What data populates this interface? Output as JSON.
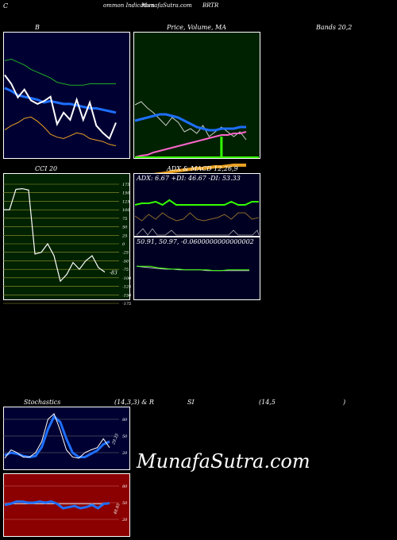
{
  "header": {
    "left": "C",
    "center": "ommon  Indicators",
    "site": "MunafaSutra.com",
    "symbol": "BRTR"
  },
  "panels": {
    "bollinger": {
      "label": "B",
      "title_right": "Bands 20,2"
    },
    "price": {
      "label": "Price,  Volume,  MA",
      "sub": "Volume"
    },
    "cci": {
      "label": "CCI 20",
      "last_value": "-83"
    },
    "adx": {
      "label": "ADX  & MACD 12,26,9",
      "readout": "ADX: 6.67  +DI: 46.67 -DI: 53.33"
    },
    "macd": {
      "readout": "50.91,  50.97,  -0.0600000000000002"
    },
    "stoch": {
      "label": "Stochastics",
      "params": "(14,3,3) & R",
      "rsi_label": "SI",
      "rsi_params": "(14,5",
      "rsi_close": ")",
      "last_value": "29.25"
    },
    "rsi": {
      "last_value": "48.85"
    }
  },
  "brand": {
    "text": "MunafaSutra.com"
  },
  "colors": {
    "navy": "#000033",
    "green_bg": "#002200",
    "olive_bg": "#002200",
    "dark_red": "#8b0000",
    "blue": "#1e6fff",
    "orange": "#e8a020",
    "lime": "#33ff00"
  },
  "chart_data": [
    {
      "type": "line",
      "name": "bollinger",
      "series": [
        {
          "values": [
            60,
            72,
            91,
            80,
            95,
            100,
            96,
            90,
            128,
            112,
            122,
            94,
            122,
            98,
            130,
            140,
            148,
            126
          ]
        },
        {
          "values": [
            78,
            82,
            88,
            90,
            92,
            94,
            98,
            96,
            98,
            100,
            100,
            102,
            104,
            106,
            106,
            108,
            110,
            112
          ]
        },
        {
          "values": [
            40,
            38,
            42,
            46,
            52,
            56,
            60,
            64,
            70,
            72,
            74,
            74,
            74,
            72,
            72,
            72,
            72,
            72
          ]
        },
        {
          "values": [
            136,
            130,
            126,
            120,
            118,
            124,
            132,
            142,
            146,
            148,
            144,
            140,
            142,
            148,
            150,
            152,
            156,
            158
          ]
        }
      ]
    },
    {
      "type": "line",
      "name": "price-volume-ma",
      "series": [
        {
          "values": [
            92,
            88,
            96,
            102,
            110,
            118,
            108,
            114,
            126,
            122,
            128,
            118,
            132,
            126,
            120,
            126,
            132,
            126,
            136
          ]
        },
        {
          "values": [
            112,
            110,
            108,
            106,
            104,
            104,
            106,
            108,
            112,
            116,
            120,
            122,
            124,
            124,
            122,
            122,
            122,
            120,
            120
          ]
        },
        {
          "values": [
            158,
            156,
            155,
            152,
            150,
            148,
            146,
            144,
            142,
            140,
            138,
            136,
            134,
            132,
            130,
            130,
            128,
            128,
            126
          ]
        },
        {
          "values": [
            184,
            182,
            181,
            180,
            179,
            178,
            176,
            175,
            174,
            173,
            172,
            172,
            171,
            170,
            170,
            169,
            168,
            168,
            168
          ]
        }
      ],
      "volume_spike": [
        {
          "i": 14,
          "v": 1
        }
      ]
    },
    {
      "type": "line",
      "name": "cci",
      "ylim": [
        -175,
        175
      ],
      "y_ticks": [
        "175",
        "150",
        "125",
        "100",
        "75",
        "50",
        "25",
        "0",
        "-25",
        "-50",
        "-75",
        "-100",
        "-125",
        "-150",
        "-175"
      ],
      "values": [
        100,
        100,
        160,
        162,
        158,
        -30,
        -25,
        0,
        -35,
        -110,
        -90,
        -55,
        -75,
        -50,
        -35,
        -70,
        -83
      ]
    },
    {
      "type": "line",
      "name": "adx",
      "series": [
        {
          "values": [
            60,
            58,
            58,
            56,
            60,
            54,
            60,
            60,
            60,
            60,
            60,
            60,
            60,
            60,
            56,
            60,
            60,
            56,
            56
          ]
        },
        {
          "values": [
            56,
            62,
            54,
            60,
            52,
            58,
            62,
            60,
            52,
            60,
            62,
            60,
            58,
            54,
            60,
            52,
            52,
            60,
            58
          ]
        }
      ]
    },
    {
      "type": "line",
      "name": "macd",
      "series": [
        {
          "values": [
            50.97,
            50.97,
            50.97,
            50.95,
            50.94,
            50.93,
            50.93,
            50.92,
            50.92,
            50.92,
            50.92,
            50.91,
            50.91,
            50.92,
            50.92,
            50.92,
            50.92
          ]
        },
        {
          "values": [
            50.97,
            50.96,
            50.95,
            50.94,
            50.93,
            50.93,
            50.92,
            50.92,
            50.92,
            50.92,
            50.91,
            50.91,
            50.91,
            50.91,
            50.91,
            50.91,
            50.91
          ]
        }
      ]
    },
    {
      "type": "line",
      "name": "stochastics",
      "y_ticks": [
        "80",
        "50",
        "20"
      ],
      "series": [
        {
          "values": [
            10,
            25,
            20,
            12,
            12,
            20,
            40,
            80,
            90,
            60,
            25,
            12,
            10,
            20,
            25,
            29,
            45,
            29
          ]
        },
        {
          "values": [
            15,
            20,
            18,
            14,
            12,
            14,
            30,
            62,
            85,
            75,
            45,
            20,
            12,
            12,
            18,
            24,
            35,
            40
          ]
        }
      ]
    },
    {
      "type": "line",
      "name": "rsi",
      "y_ticks": [
        "80",
        "50",
        "20"
      ],
      "series": [
        {
          "values": [
            46,
            48,
            52,
            52,
            50,
            50,
            52,
            50,
            52,
            48,
            40,
            42,
            44,
            40,
            42,
            46,
            40,
            48,
            49
          ]
        },
        {
          "values": [
            48,
            48,
            48,
            48,
            48,
            48,
            48,
            48,
            48,
            48,
            48,
            48,
            48,
            48,
            48,
            48,
            48,
            48,
            48
          ]
        }
      ]
    }
  ]
}
